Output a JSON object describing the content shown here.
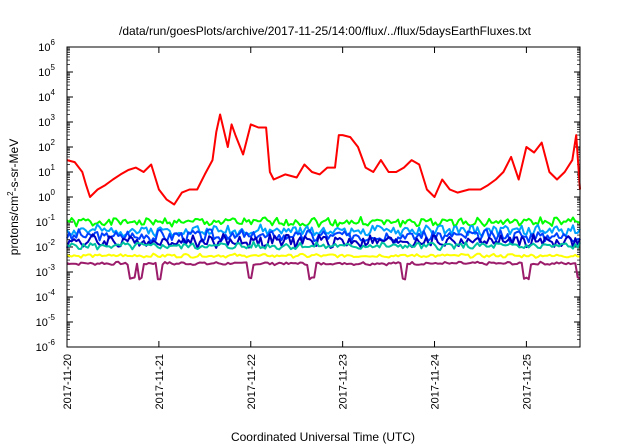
{
  "chart_data": {
    "type": "line",
    "title": "/data/run/goesPlots/archive/2017-11-25/14:00/flux/../flux/5daysEarthFluxes.txt",
    "xlabel": "Coordinated Universal Time (UTC)",
    "ylabel": {
      "prefix": "protons/cm",
      "sup": "2",
      "suffix": "-s-sr-MeV"
    },
    "y_scale": "log",
    "ylim": [
      1e-06,
      1000000.0
    ],
    "y_ticks": [
      {
        "base": "10",
        "exp": "-6",
        "value": 1e-06
      },
      {
        "base": "10",
        "exp": "-5",
        "value": 1e-05
      },
      {
        "base": "10",
        "exp": "-4",
        "value": 0.0001
      },
      {
        "base": "10",
        "exp": "-3",
        "value": 0.001
      },
      {
        "base": "10",
        "exp": "-2",
        "value": 0.01
      },
      {
        "base": "10",
        "exp": "-1",
        "value": 0.1
      },
      {
        "base": "10",
        "exp": "0",
        "value": 1.0
      },
      {
        "base": "10",
        "exp": "1",
        "value": 10.0
      },
      {
        "base": "10",
        "exp": "2",
        "value": 100.0
      },
      {
        "base": "10",
        "exp": "3",
        "value": 1000.0
      },
      {
        "base": "10",
        "exp": "4",
        "value": 10000.0
      },
      {
        "base": "10",
        "exp": "5",
        "value": 100000.0
      },
      {
        "base": "10",
        "exp": "6",
        "value": 1000000.0
      }
    ],
    "x_ticks": [
      "2017-11-20",
      "2017-11-21",
      "2017-11-22",
      "2017-11-23",
      "2017-11-24",
      "2017-11-25"
    ],
    "xlim": [
      "2017-11-20",
      "2017-11-25 14:00"
    ],
    "grid": false,
    "legend": "none",
    "series": [
      {
        "color": "#ff0000",
        "points": [
          [
            "2017-11-20 00:00",
            30
          ],
          [
            "2017-11-20 02:00",
            25
          ],
          [
            "2017-11-20 04:00",
            10
          ],
          [
            "2017-11-20 05:00",
            3
          ],
          [
            "2017-11-20 06:00",
            1
          ],
          [
            "2017-11-20 08:00",
            2
          ],
          [
            "2017-11-20 10:00",
            3
          ],
          [
            "2017-11-20 12:00",
            5
          ],
          [
            "2017-11-20 14:00",
            8
          ],
          [
            "2017-11-20 16:00",
            12
          ],
          [
            "2017-11-20 18:00",
            15
          ],
          [
            "2017-11-20 20:00",
            10
          ],
          [
            "2017-11-20 22:00",
            20
          ],
          [
            "2017-11-21 00:00",
            2
          ],
          [
            "2017-11-21 02:00",
            0.8
          ],
          [
            "2017-11-21 04:00",
            0.5
          ],
          [
            "2017-11-21 06:00",
            1.5
          ],
          [
            "2017-11-21 08:00",
            2
          ],
          [
            "2017-11-21 10:00",
            2
          ],
          [
            "2017-11-21 12:00",
            8
          ],
          [
            "2017-11-21 14:00",
            30
          ],
          [
            "2017-11-21 15:00",
            400
          ],
          [
            "2017-11-21 16:00",
            2000
          ],
          [
            "2017-11-21 18:00",
            100
          ],
          [
            "2017-11-21 19:00",
            800
          ],
          [
            "2017-11-21 20:00",
            300
          ],
          [
            "2017-11-21 22:00",
            50
          ],
          [
            "2017-11-22 00:00",
            800
          ],
          [
            "2017-11-22 02:00",
            600
          ],
          [
            "2017-11-22 04:00",
            600
          ],
          [
            "2017-11-22 05:00",
            10
          ],
          [
            "2017-11-22 06:00",
            5
          ],
          [
            "2017-11-22 09:00",
            8
          ],
          [
            "2017-11-22 12:00",
            6
          ],
          [
            "2017-11-22 14:00",
            20
          ],
          [
            "2017-11-22 16:00",
            10
          ],
          [
            "2017-11-22 18:00",
            8
          ],
          [
            "2017-11-22 20:00",
            15
          ],
          [
            "2017-11-22 22:00",
            15
          ],
          [
            "2017-11-22 23:00",
            300
          ],
          [
            "2017-11-23 00:00",
            300
          ],
          [
            "2017-11-23 02:00",
            250
          ],
          [
            "2017-11-23 04:00",
            100
          ],
          [
            "2017-11-23 06:00",
            15
          ],
          [
            "2017-11-23 08:00",
            10
          ],
          [
            "2017-11-23 10:00",
            30
          ],
          [
            "2017-11-23 12:00",
            10
          ],
          [
            "2017-11-23 14:00",
            10
          ],
          [
            "2017-11-23 16:00",
            15
          ],
          [
            "2017-11-23 18:00",
            30
          ],
          [
            "2017-11-23 20:00",
            20
          ],
          [
            "2017-11-23 22:00",
            2
          ],
          [
            "2017-11-24 00:00",
            1
          ],
          [
            "2017-11-24 02:00",
            5
          ],
          [
            "2017-11-24 04:00",
            2
          ],
          [
            "2017-11-24 06:00",
            1.5
          ],
          [
            "2017-11-24 09:00",
            2
          ],
          [
            "2017-11-24 12:00",
            2
          ],
          [
            "2017-11-24 14:00",
            3
          ],
          [
            "2017-11-24 16:00",
            5
          ],
          [
            "2017-11-24 18:00",
            10
          ],
          [
            "2017-11-24 20:00",
            40
          ],
          [
            "2017-11-24 22:00",
            5
          ],
          [
            "2017-11-25 00:00",
            100
          ],
          [
            "2017-11-25 02:00",
            60
          ],
          [
            "2017-11-25 04:00",
            150
          ],
          [
            "2017-11-25 06:00",
            10
          ],
          [
            "2017-11-25 08:00",
            5
          ],
          [
            "2017-11-25 10:00",
            10
          ],
          [
            "2017-11-25 12:00",
            30
          ],
          [
            "2017-11-25 13:00",
            300
          ],
          [
            "2017-11-25 14:00",
            2
          ]
        ]
      },
      {
        "color": "#00ff00",
        "base": 0.1,
        "amp": 0.15,
        "seed": 1
      },
      {
        "color": "#00a0ff",
        "base": 0.045,
        "amp": 0.18,
        "seed": 2
      },
      {
        "color": "#0040ff",
        "base": 0.028,
        "amp": 0.2,
        "seed": 3
      },
      {
        "color": "#0000c0",
        "base": 0.017,
        "amp": 0.22,
        "seed": 4
      },
      {
        "color": "#00c0a0",
        "base": 0.011,
        "amp": 0.12,
        "seed": 5
      },
      {
        "color": "#ffff00",
        "base": 0.0045,
        "amp": 0.06,
        "seed": 6
      },
      {
        "color": "#9b1c6a",
        "base": 0.0022,
        "amp": 0.05,
        "seed": 7,
        "dips": [
          "2017-11-20 17:00",
          "2017-11-20 19:00",
          "2017-11-21 00:00",
          "2017-11-22 00:00",
          "2017-11-22 16:00",
          "2017-11-23 16:00",
          "2017-11-25 00:00",
          "2017-11-25 14:00"
        ]
      }
    ]
  }
}
